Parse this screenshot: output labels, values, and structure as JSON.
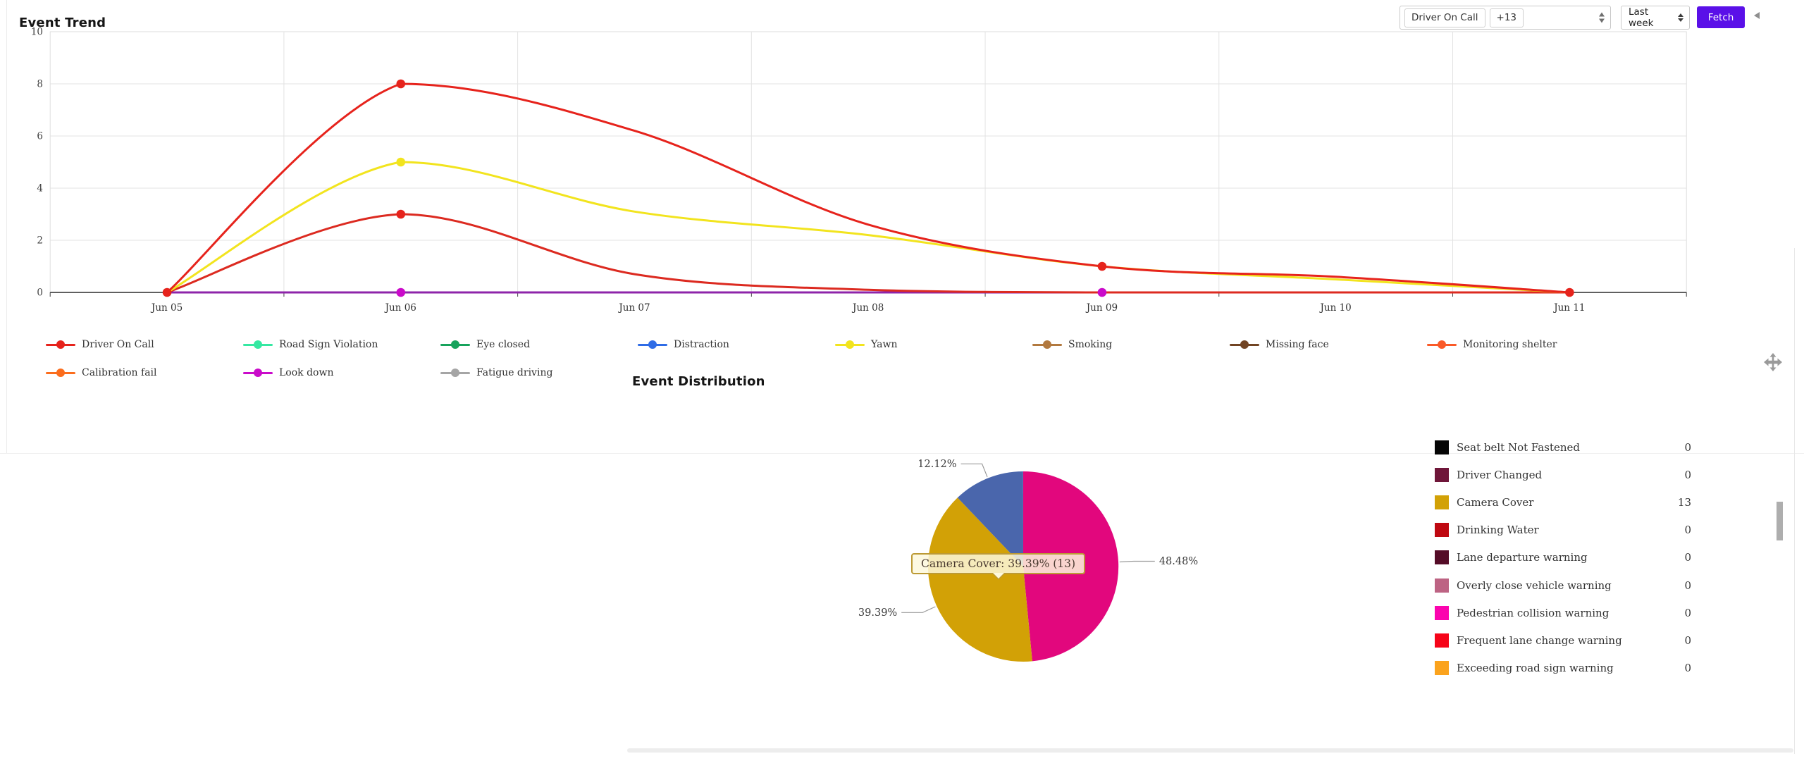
{
  "page": {
    "trend_title": "Event Trend",
    "distribution_title": "Event Distribution"
  },
  "controls": {
    "event_filter": {
      "selected_tag": "Driver On Call",
      "overflow_tag": "+13"
    },
    "period_select": {
      "value": "Last week"
    },
    "fetch_button": "Fetch"
  },
  "chart_data": [
    {
      "type": "line",
      "title": "Event Trend",
      "x": [
        "Jun 05",
        "Jun 06",
        "Jun 07",
        "Jun 08",
        "Jun 09",
        "Jun 10",
        "Jun 11"
      ],
      "ylim": [
        0,
        10
      ],
      "ytick_step": 2,
      "grid": true,
      "legend_position": "bottom",
      "series": [
        {
          "name": "Driver On Call",
          "color": "#e6231c",
          "z": 3,
          "values": [
            0,
            8,
            6.2,
            2.6,
            1,
            0.6,
            0
          ]
        },
        {
          "name": "Road Sign Violation",
          "color": "#35e8a2",
          "z": 0,
          "values": [
            0,
            0,
            0,
            0,
            0,
            0,
            0
          ]
        },
        {
          "name": "Eye closed",
          "color": "#17a35c",
          "z": 0,
          "values": [
            0,
            0,
            0,
            0,
            0,
            0,
            0
          ]
        },
        {
          "name": "Distraction",
          "color": "#2f6ce6",
          "z": 0,
          "values": [
            0,
            0,
            0,
            0,
            0,
            0,
            0
          ]
        },
        {
          "name": "Yawn",
          "color": "#f2e41e",
          "z": 2,
          "values": [
            0,
            5,
            3.1,
            2.2,
            1,
            0.5,
            0
          ]
        },
        {
          "name": "Smoking",
          "color": "#b2793f",
          "z": 0,
          "values": [
            0,
            0,
            0,
            0,
            0,
            0,
            0
          ]
        },
        {
          "name": "Missing face",
          "color": "#714423",
          "z": 0,
          "values": [
            0,
            0,
            0,
            0,
            0,
            0,
            0
          ]
        },
        {
          "name": "Monitoring shelter",
          "color": "#fa5a28",
          "line_color": "#dc2a20",
          "marker_color": "#e6231c",
          "z": 1,
          "values": [
            0,
            3,
            0.7,
            0.1,
            0,
            0,
            0
          ]
        },
        {
          "name": "Calibration fail",
          "color": "#fb6d1d",
          "z": 0,
          "values": [
            0,
            0,
            0,
            0,
            0,
            0,
            0
          ]
        },
        {
          "name": "Look down",
          "color": "#ca0bca",
          "line_color": "#8e24aa",
          "marker_color": "#ca0bca",
          "z": 0.5,
          "values": [
            0,
            0,
            0,
            0,
            0,
            0,
            0
          ]
        },
        {
          "name": "Fatigue driving",
          "color": "#a5a5a5",
          "z": 0,
          "values": [
            0,
            0,
            0,
            0,
            0,
            0,
            0
          ]
        }
      ],
      "markers": [
        {
          "series": "Look down",
          "x": "Jun 06",
          "value": 0
        },
        {
          "series": "Look down",
          "x": "Jun 09",
          "value": 0
        },
        {
          "series": "Monitoring shelter",
          "x": "Jun 06",
          "value": 3
        },
        {
          "series": "Yawn",
          "x": "Jun 06",
          "value": 5
        },
        {
          "series": "Driver On Call",
          "x": "Jun 05",
          "value": 0
        },
        {
          "series": "Driver On Call",
          "x": "Jun 06",
          "value": 8
        },
        {
          "series": "Driver On Call",
          "x": "Jun 09",
          "value": 1
        },
        {
          "series": "Driver On Call",
          "x": "Jun 11",
          "value": 0
        }
      ]
    },
    {
      "type": "pie",
      "title": "Event Distribution",
      "slices": [
        {
          "label": "48.48%",
          "pct": 48.48,
          "color": "#e2077d"
        },
        {
          "label": "39.39%",
          "pct": 39.39,
          "color": "#d2a106"
        },
        {
          "label": "12.12%",
          "pct": 12.12,
          "color": "#4a66ac"
        }
      ],
      "tooltip": "Camera Cover: 39.39% (13)",
      "legend": [
        {
          "label": "Seat belt Not Fastened",
          "count": 0,
          "color": "#050505"
        },
        {
          "label": "Driver Changed",
          "count": 0,
          "color": "#6f1639"
        },
        {
          "label": "Camera Cover",
          "count": 13,
          "color": "#d2a106"
        },
        {
          "label": "Drinking Water",
          "count": 0,
          "color": "#bf0811"
        },
        {
          "label": "Lane departure warning",
          "count": 0,
          "color": "#550c27"
        },
        {
          "label": "Overly close vehicle warning",
          "count": 0,
          "color": "#bd6383"
        },
        {
          "label": "Pedestrian collision warning",
          "count": 0,
          "color": "#fb04ae"
        },
        {
          "label": "Frequent lane change warning",
          "count": 0,
          "color": "#f60419"
        },
        {
          "label": "Exceeding road sign warning",
          "count": 0,
          "color": "#fba31d"
        }
      ]
    }
  ]
}
